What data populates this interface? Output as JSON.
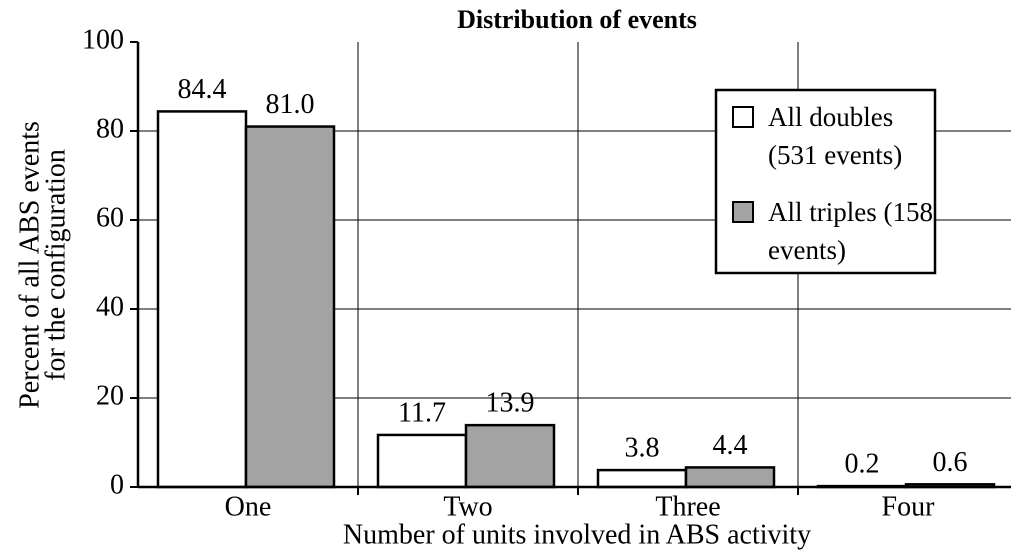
{
  "chart_data": {
    "type": "bar",
    "title": "Distribution of events",
    "x_label": "Number of units involved in ABS activity",
    "y_label": [
      "Percent of all ABS events",
      "for the configuration"
    ],
    "categories": [
      "One",
      "Two",
      "Three",
      "Four"
    ],
    "series": [
      {
        "name": "All doubles (531 events)",
        "color": "#ffffff",
        "values": [
          84.4,
          11.7,
          3.8,
          0.2
        ],
        "value_labels": [
          "84.4",
          "11.7",
          "3.8",
          "0.2"
        ]
      },
      {
        "name": "All triples (158 events)",
        "color": "#a3a3a3",
        "values": [
          81.0,
          13.9,
          4.4,
          0.6
        ],
        "value_labels": [
          "81.0",
          "13.9",
          "4.4",
          "0.6"
        ]
      }
    ],
    "ylim": [
      0,
      100
    ],
    "yticks": [
      0,
      20,
      40,
      60,
      80,
      100
    ],
    "grid": true,
    "legend": "upper right"
  }
}
